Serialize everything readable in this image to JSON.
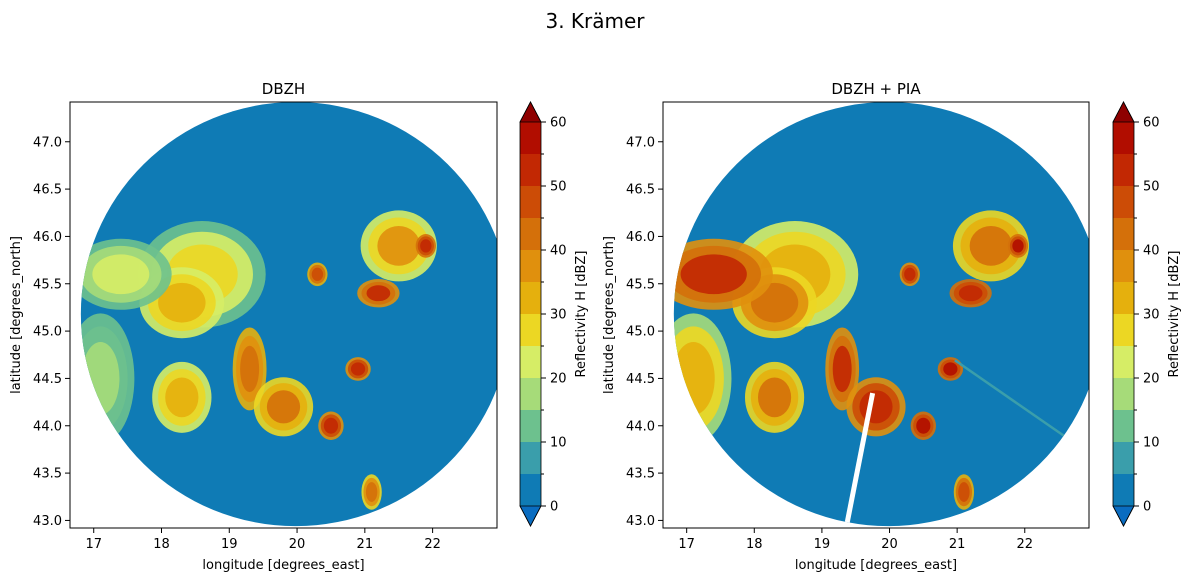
{
  "suptitle": "3. Krämer",
  "chart_data": [
    {
      "type": "heatmap",
      "title": "DBZH",
      "xlabel": "longitude [degrees_east]",
      "ylabel": "latitude [degrees_north]",
      "xlim": [
        16.65,
        22.95
      ],
      "ylim": [
        42.92,
        47.42
      ],
      "xticks": [
        "17",
        "18",
        "19",
        "20",
        "21",
        "22"
      ],
      "yticks": [
        "43.0",
        "43.5",
        "44.0",
        "44.5",
        "45.0",
        "45.5",
        "46.0",
        "46.5",
        "47.0"
      ],
      "radar_center": [
        19.98,
        45.18
      ],
      "radar_range_deg": {
        "lon": 3.17,
        "lat": 2.24
      },
      "background_value_dbz": 0,
      "precip_cells": [
        {
          "lon": 18.6,
          "lat": 45.6,
          "rx": 0.75,
          "ry": 0.45,
          "dbz": 28
        },
        {
          "lon": 18.3,
          "lat": 45.3,
          "rx": 0.5,
          "ry": 0.3,
          "dbz": 34
        },
        {
          "lon": 17.4,
          "lat": 45.6,
          "rx": 0.6,
          "ry": 0.3,
          "dbz": 22
        },
        {
          "lon": 17.1,
          "lat": 44.5,
          "rx": 0.4,
          "ry": 0.55,
          "dbz": 18
        },
        {
          "lon": 18.3,
          "lat": 44.3,
          "rx": 0.35,
          "ry": 0.3,
          "dbz": 34
        },
        {
          "lon": 19.3,
          "lat": 44.6,
          "rx": 0.2,
          "ry": 0.35,
          "dbz": 44
        },
        {
          "lon": 19.8,
          "lat": 44.2,
          "rx": 0.35,
          "ry": 0.25,
          "dbz": 40
        },
        {
          "lon": 20.5,
          "lat": 44.0,
          "rx": 0.15,
          "ry": 0.12,
          "dbz": 52
        },
        {
          "lon": 20.9,
          "lat": 44.6,
          "rx": 0.15,
          "ry": 0.1,
          "dbz": 52
        },
        {
          "lon": 21.2,
          "lat": 45.4,
          "rx": 0.25,
          "ry": 0.12,
          "dbz": 50
        },
        {
          "lon": 21.5,
          "lat": 45.9,
          "rx": 0.45,
          "ry": 0.3,
          "dbz": 36
        },
        {
          "lon": 21.9,
          "lat": 45.9,
          "rx": 0.12,
          "ry": 0.1,
          "dbz": 54
        },
        {
          "lon": 20.3,
          "lat": 45.6,
          "rx": 0.12,
          "ry": 0.1,
          "dbz": 48
        },
        {
          "lon": 21.1,
          "lat": 43.3,
          "rx": 0.12,
          "ry": 0.15,
          "dbz": 42
        }
      ]
    },
    {
      "type": "heatmap",
      "title": "DBZH + PIA",
      "xlabel": "longitude [degrees_east]",
      "ylabel": "latitude [degrees_north]",
      "xlim": [
        16.65,
        22.95
      ],
      "ylim": [
        42.92,
        47.42
      ],
      "xticks": [
        "17",
        "18",
        "19",
        "20",
        "21",
        "22"
      ],
      "yticks": [
        "43.0",
        "43.5",
        "44.0",
        "44.5",
        "45.0",
        "45.5",
        "46.0",
        "46.5",
        "47.0"
      ],
      "radar_center": [
        19.98,
        45.18
      ],
      "radar_range_deg": {
        "lon": 3.17,
        "lat": 2.24
      },
      "background_value_dbz": 0,
      "precip_cells": [
        {
          "lon": 18.6,
          "lat": 45.6,
          "rx": 0.75,
          "ry": 0.45,
          "dbz": 34
        },
        {
          "lon": 18.3,
          "lat": 45.3,
          "rx": 0.5,
          "ry": 0.3,
          "dbz": 42
        },
        {
          "lon": 17.4,
          "lat": 45.6,
          "rx": 0.7,
          "ry": 0.3,
          "dbz": 50
        },
        {
          "lon": 17.1,
          "lat": 44.5,
          "rx": 0.45,
          "ry": 0.55,
          "dbz": 32
        },
        {
          "lon": 18.3,
          "lat": 44.3,
          "rx": 0.35,
          "ry": 0.3,
          "dbz": 40
        },
        {
          "lon": 19.3,
          "lat": 44.6,
          "rx": 0.2,
          "ry": 0.35,
          "dbz": 50
        },
        {
          "lon": 19.8,
          "lat": 44.2,
          "rx": 0.35,
          "ry": 0.25,
          "dbz": 52
        },
        {
          "lon": 20.5,
          "lat": 44.0,
          "rx": 0.15,
          "ry": 0.12,
          "dbz": 56
        },
        {
          "lon": 20.9,
          "lat": 44.6,
          "rx": 0.15,
          "ry": 0.1,
          "dbz": 56
        },
        {
          "lon": 21.2,
          "lat": 45.4,
          "rx": 0.25,
          "ry": 0.12,
          "dbz": 54
        },
        {
          "lon": 21.5,
          "lat": 45.9,
          "rx": 0.45,
          "ry": 0.3,
          "dbz": 40
        },
        {
          "lon": 21.9,
          "lat": 45.9,
          "rx": 0.12,
          "ry": 0.1,
          "dbz": 56
        },
        {
          "lon": 20.3,
          "lat": 45.6,
          "rx": 0.12,
          "ry": 0.1,
          "dbz": 52
        },
        {
          "lon": 21.1,
          "lat": 43.3,
          "rx": 0.12,
          "ry": 0.15,
          "dbz": 48
        }
      ],
      "artifact_rays": [
        {
          "azimuth_deg": 191,
          "dbz": null
        },
        {
          "azimuth_deg": 125,
          "dbz": 8
        }
      ]
    }
  ],
  "colorbar": {
    "label": "Reflectivity H [dBZ]",
    "extend": "both",
    "levels": [
      0,
      5,
      10,
      15,
      20,
      25,
      30,
      35,
      40,
      45,
      50,
      55,
      60
    ],
    "ticks": [
      "0",
      "10",
      "20",
      "30",
      "40",
      "50",
      "60"
    ],
    "colors": [
      "#0f7bb5",
      "#3a9eab",
      "#6dc18e",
      "#a6db79",
      "#d6ed66",
      "#ecd723",
      "#e5b00d",
      "#e0900d",
      "#d4700a",
      "#cc4c06",
      "#c22803",
      "#b10d00"
    ],
    "under_color": "#0a6cc0",
    "over_color": "#8e0000"
  }
}
